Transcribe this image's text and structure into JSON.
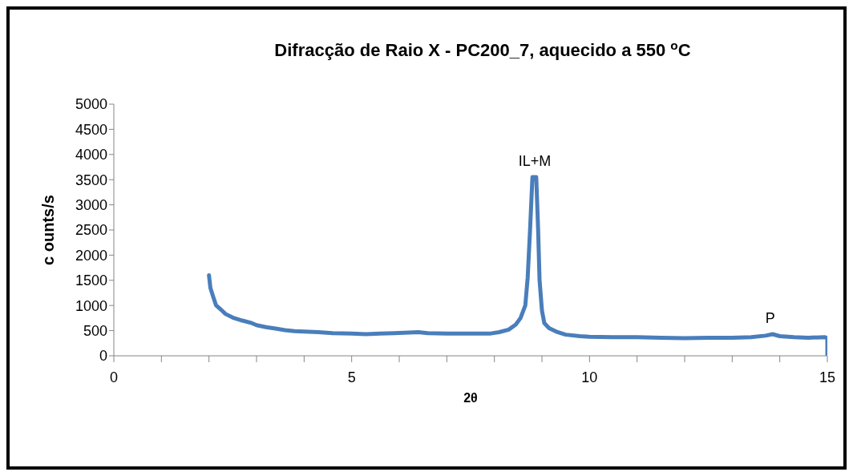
{
  "chart_data": {
    "type": "line",
    "title": "Difracção de Raio X - PC200_7, aquecido a 550 $^{o}$C",
    "xlabel": "2θ",
    "ylabel": "c ounts/s",
    "x": [
      2.0,
      2.03,
      2.08,
      2.15,
      2.25,
      2.35,
      2.5,
      2.7,
      2.9,
      3.0,
      3.2,
      3.4,
      3.6,
      3.8,
      4.0,
      4.3,
      4.6,
      5.0,
      5.3,
      5.6,
      5.9,
      6.2,
      6.4,
      6.6,
      7.0,
      7.3,
      7.6,
      7.9,
      8.1,
      8.3,
      8.45,
      8.55,
      8.65,
      8.7,
      8.75,
      8.8,
      8.83,
      8.88,
      8.92,
      8.95,
      9.0,
      9.05,
      9.15,
      9.3,
      9.5,
      9.8,
      10.0,
      10.5,
      11.0,
      11.5,
      12.0,
      12.5,
      13.0,
      13.4,
      13.7,
      13.85,
      14.0,
      14.3,
      14.6,
      14.95,
      15.0,
      15.0
    ],
    "series": [
      {
        "color": "#4a7ebb",
        "values": [
          1600,
          1350,
          1200,
          1000,
          920,
          830,
          760,
          700,
          650,
          610,
          570,
          540,
          510,
          490,
          480,
          470,
          450,
          440,
          430,
          440,
          450,
          460,
          470,
          450,
          440,
          440,
          440,
          440,
          470,
          520,
          620,
          750,
          1000,
          1550,
          2500,
          3550,
          3550,
          3550,
          2500,
          1500,
          900,
          650,
          550,
          480,
          420,
          390,
          380,
          370,
          370,
          360,
          350,
          360,
          360,
          370,
          400,
          430,
          390,
          370,
          360,
          370,
          350,
          0
        ]
      }
    ],
    "annotations": [
      {
        "text": "IL+M",
        "x": 8.85,
        "y": 3550
      },
      {
        "text": "P",
        "x": 13.8,
        "y": 430
      }
    ],
    "xlim": [
      0,
      15
    ],
    "xticks": [
      0,
      {
        "value": 1,
        "label": null
      },
      {
        "value": 2,
        "label": null
      },
      {
        "value": 3,
        "label": null
      },
      {
        "value": 4,
        "label": null
      },
      5,
      {
        "value": 6,
        "label": null
      },
      {
        "value": 7,
        "label": null
      },
      {
        "value": 8,
        "label": null
      },
      {
        "value": 9,
        "label": null
      },
      10,
      {
        "value": 11,
        "label": null
      },
      {
        "value": 12,
        "label": null
      },
      {
        "value": 13,
        "label": null
      },
      {
        "value": 14,
        "label": null
      },
      15
    ],
    "ylim": [
      0,
      5000
    ],
    "yticks": [
      0,
      500,
      1000,
      1500,
      2000,
      2500,
      3000,
      3500,
      4000,
      4500,
      5000
    ],
    "grid": false,
    "legend": false,
    "marker": "none",
    "line_style": "solid"
  }
}
